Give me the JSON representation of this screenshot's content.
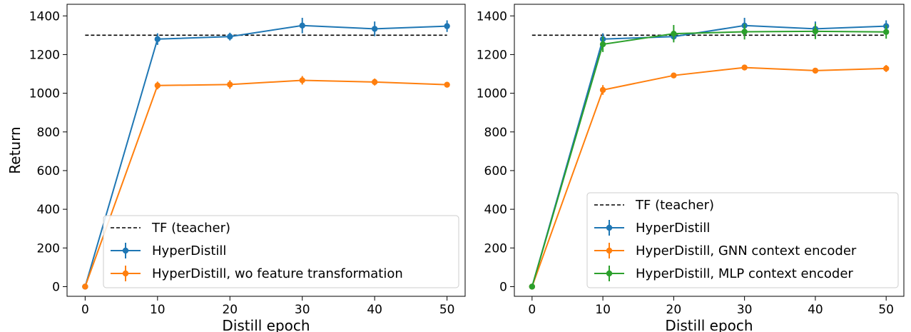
{
  "chart_data": [
    {
      "type": "line",
      "xlabel": "Distill epoch",
      "ylabel": "Return",
      "xlim": [
        -2.5,
        52.5
      ],
      "ylim": [
        -50,
        1460
      ],
      "xticks": [
        0,
        10,
        20,
        30,
        40,
        50
      ],
      "yticks": [
        0,
        200,
        400,
        600,
        800,
        1000,
        1200,
        1400
      ],
      "grid": false,
      "legend_position": "lower-right",
      "baseline": {
        "name": "TF (teacher)",
        "y": 1300,
        "color": "#000000"
      },
      "x": [
        0,
        10,
        20,
        30,
        40,
        50
      ],
      "series": [
        {
          "name": "HyperDistill",
          "color": "#1f77b4",
          "values": [
            0,
            1280,
            1293,
            1350,
            1333,
            1347
          ],
          "errors": [
            0,
            30,
            20,
            40,
            38,
            30
          ]
        },
        {
          "name": "HyperDistill, wo feature transformation",
          "color": "#ff7f0e",
          "values": [
            0,
            1040,
            1045,
            1067,
            1058,
            1044
          ],
          "errors": [
            0,
            20,
            22,
            22,
            18,
            10
          ]
        }
      ]
    },
    {
      "type": "line",
      "xlabel": "Distill epoch",
      "ylabel": "",
      "xlim": [
        -2.5,
        52.5
      ],
      "ylim": [
        -50,
        1460
      ],
      "xticks": [
        0,
        10,
        20,
        30,
        40,
        50
      ],
      "yticks": [
        0,
        200,
        400,
        600,
        800,
        1000,
        1200,
        1400
      ],
      "grid": false,
      "legend_position": "lower-right",
      "baseline": {
        "name": "TF (teacher)",
        "y": 1300,
        "color": "#000000"
      },
      "x": [
        0,
        10,
        20,
        30,
        40,
        50
      ],
      "series": [
        {
          "name": "HyperDistill",
          "color": "#1f77b4",
          "values": [
            0,
            1280,
            1293,
            1350,
            1333,
            1347
          ],
          "errors": [
            0,
            30,
            20,
            40,
            38,
            30
          ]
        },
        {
          "name": "HyperDistill, GNN context encoder",
          "color": "#ff7f0e",
          "values": [
            0,
            1017,
            1092,
            1133,
            1117,
            1128
          ],
          "errors": [
            0,
            25,
            10,
            12,
            10,
            18
          ]
        },
        {
          "name": "HyperDistill, MLP context encoder",
          "color": "#2ca02c",
          "values": [
            0,
            1253,
            1308,
            1318,
            1320,
            1317
          ],
          "errors": [
            0,
            40,
            45,
            40,
            40,
            35
          ]
        }
      ]
    }
  ]
}
